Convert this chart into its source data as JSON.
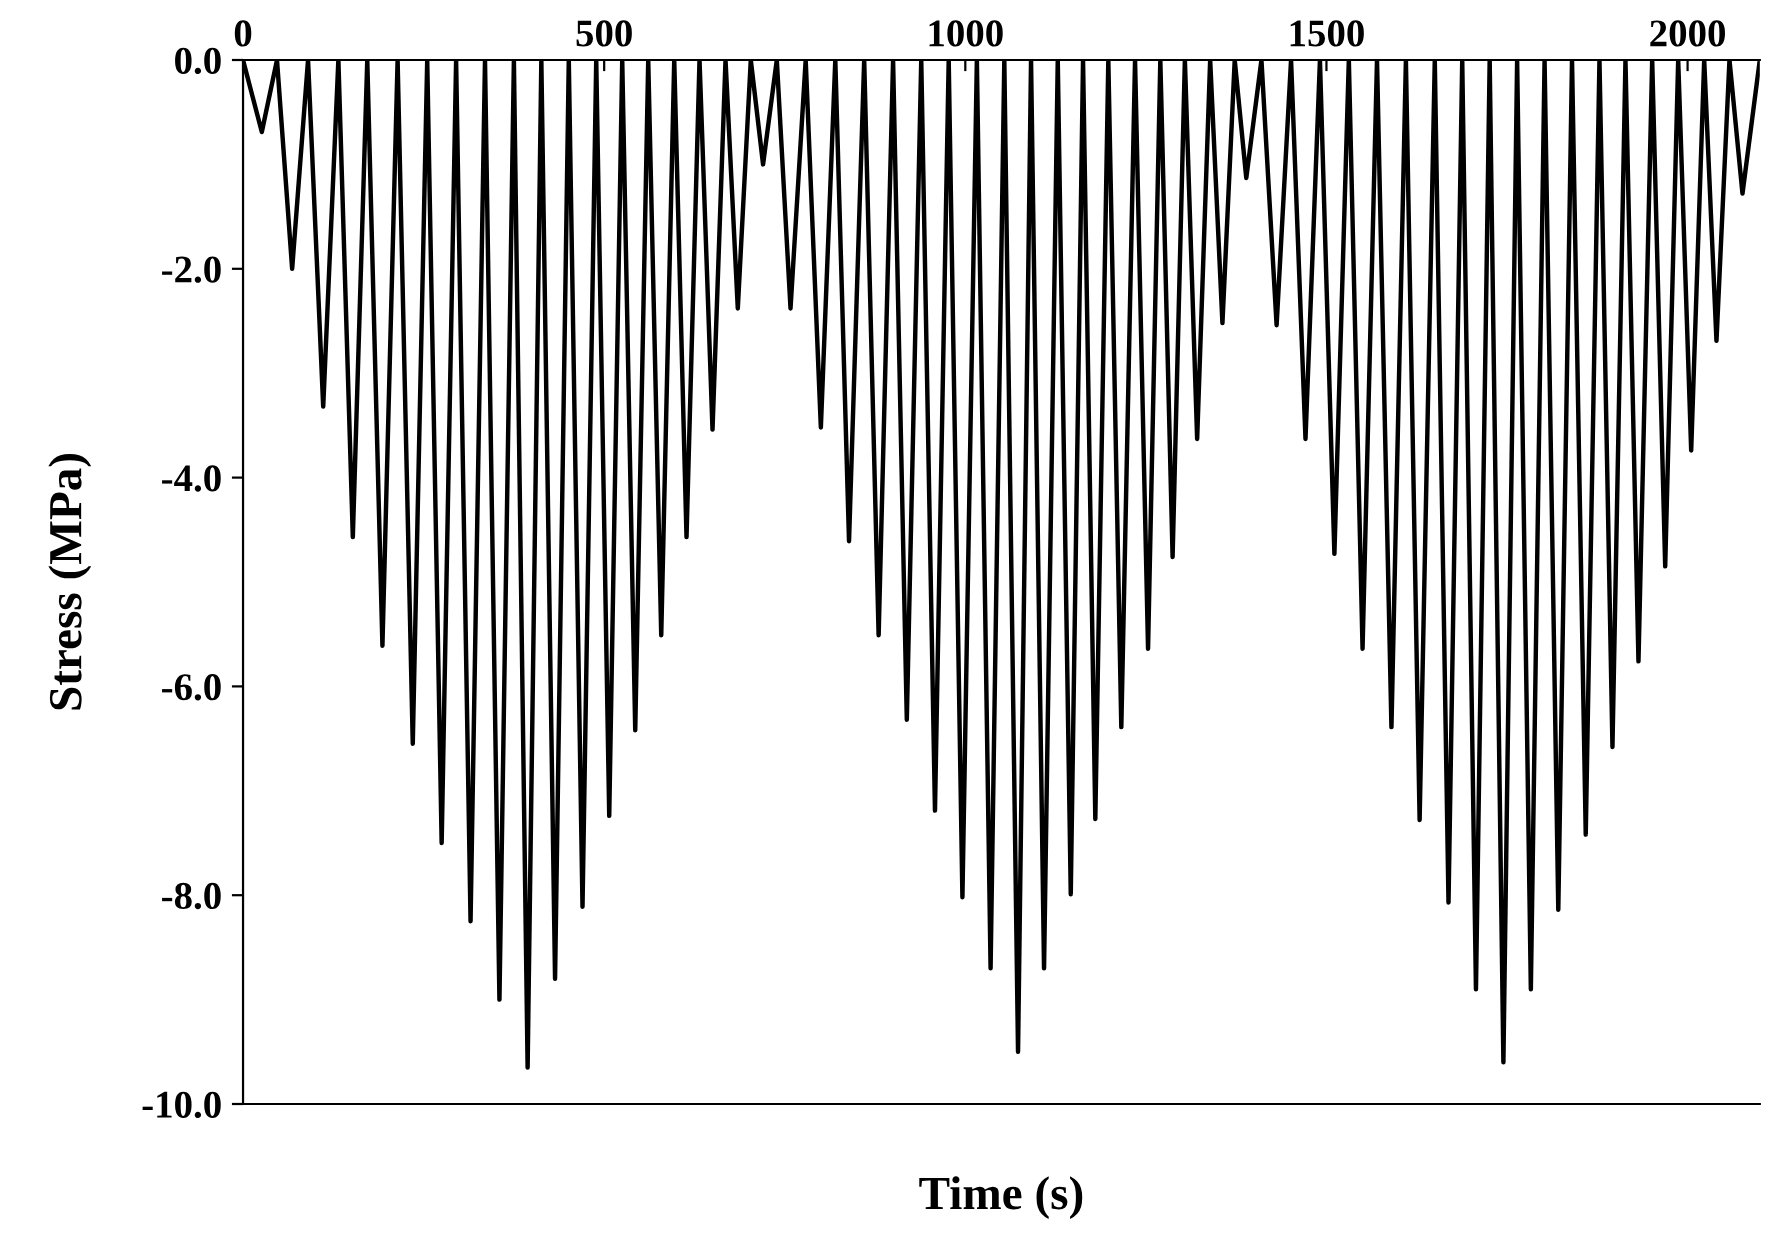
{
  "chart_data": {
    "type": "line",
    "xlabel": "Time (s)",
    "ylabel": "Stress (MPa)",
    "color": "#000000",
    "xlim": [
      0,
      2100
    ],
    "xticks": [
      0,
      500,
      1000,
      1500,
      2000
    ],
    "ylim": [
      -10,
      0
    ],
    "yticks": [
      {
        "value": 0,
        "label": "0.0"
      },
      {
        "value": -2,
        "label": "-2.0"
      },
      {
        "value": -4,
        "label": "-4.0"
      },
      {
        "value": -6,
        "label": "-6.0"
      },
      {
        "value": -8,
        "label": "-8.0"
      },
      {
        "value": -10,
        "label": "-10.0"
      }
    ],
    "x": [
      0,
      26,
      47,
      68,
      90,
      111,
      132,
      152,
      172,
      193,
      214,
      235,
      255,
      275,
      295,
      315,
      335,
      355,
      375,
      394,
      413,
      432,
      451,
      470,
      489,
      507,
      525,
      543,
      561,
      579,
      597,
      614,
      632,
      650,
      668,
      685,
      703,
      720,
      739,
      758,
      779,
      800,
      820,
      839,
      860,
      880,
      900,
      919,
      939,
      958,
      977,
      996,
      1016,
      1035,
      1054,
      1073,
      1091,
      1109,
      1128,
      1146,
      1163,
      1180,
      1198,
      1216,
      1235,
      1253,
      1270,
      1287,
      1304,
      1321,
      1339,
      1356,
      1373,
      1389,
      1410,
      1431,
      1451,
      1471,
      1491,
      1511,
      1531,
      1550,
      1570,
      1590,
      1610,
      1629,
      1650,
      1669,
      1688,
      1707,
      1726,
      1745,
      1764,
      1783,
      1802,
      1821,
      1840,
      1859,
      1878,
      1896,
      1914,
      1932,
      1951,
      1969,
      1987,
      2005,
      2023,
      2040,
      2058,
      2076,
      2100
    ],
    "values": [
      0,
      -0.69,
      0,
      -2.0,
      0,
      -3.32,
      0,
      -4.57,
      0,
      -5.61,
      0,
      -6.55,
      0,
      -7.5,
      0,
      -8.25,
      0,
      -9.0,
      0,
      -9.65,
      0,
      -8.8,
      0,
      -8.11,
      0,
      -7.24,
      0,
      -6.42,
      0,
      -5.51,
      0,
      -4.57,
      0,
      -3.54,
      0,
      -2.38,
      0,
      -1.0,
      0,
      -2.38,
      0,
      -3.52,
      0,
      -4.61,
      0,
      -5.51,
      0,
      -6.32,
      0,
      -7.19,
      0,
      -8.02,
      0,
      -8.7,
      0,
      -9.5,
      0,
      -8.7,
      0,
      -7.99,
      0,
      -7.27,
      0,
      -6.39,
      0,
      -5.64,
      0,
      -4.76,
      0,
      -3.63,
      0,
      -2.52,
      0,
      -1.13,
      0,
      -2.54,
      0,
      -3.63,
      0,
      -4.73,
      0,
      -5.64,
      0,
      -6.39,
      0,
      -7.28,
      0,
      -8.07,
      0,
      -8.9,
      0,
      -9.6,
      0,
      -8.9,
      0,
      -8.14,
      0,
      -7.42,
      0,
      -6.58,
      0,
      -5.76,
      0,
      -4.85,
      0,
      -3.74,
      0,
      -2.69,
      0,
      -1.28,
      0
    ]
  }
}
